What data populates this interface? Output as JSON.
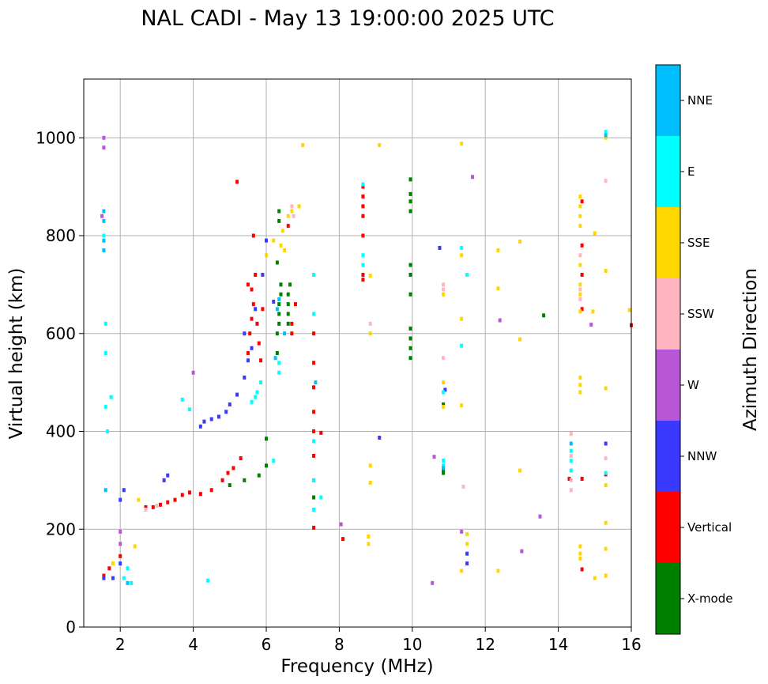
{
  "chart_data": {
    "type": "scatter",
    "title": "NAL CADI - May 13 19:00:00 2025 UTC",
    "xlabel": "Frequency (MHz)",
    "ylabel": "Virtual height (km)",
    "xlim": [
      1,
      16
    ],
    "ylim": [
      0,
      1120
    ],
    "xticks": [
      2,
      4,
      6,
      8,
      10,
      12,
      14,
      16
    ],
    "yticks": [
      0,
      200,
      400,
      600,
      800,
      1000
    ],
    "grid": true,
    "colorbar": {
      "title": "Azimuth Direction",
      "categories": [
        {
          "label": "X-mode",
          "color": "#008000"
        },
        {
          "label": "Vertical",
          "color": "#ff0000"
        },
        {
          "label": "NNW",
          "color": "#3a3aff"
        },
        {
          "label": "W",
          "color": "#b857d6"
        },
        {
          "label": "SSW",
          "color": "#ffb6c1"
        },
        {
          "label": "SSE",
          "color": "#ffd700"
        },
        {
          "label": "E",
          "color": "#00ffff"
        },
        {
          "label": "NNE",
          "color": "#00bfff"
        }
      ]
    },
    "series": [
      {
        "name": "X-mode",
        "points": [
          [
            6.0,
            385
          ],
          [
            6.3,
            560
          ],
          [
            6.3,
            600
          ],
          [
            6.35,
            620
          ],
          [
            6.35,
            640
          ],
          [
            6.35,
            660
          ],
          [
            6.4,
            680
          ],
          [
            6.4,
            700
          ],
          [
            6.6,
            620
          ],
          [
            6.6,
            640
          ],
          [
            6.6,
            660
          ],
          [
            6.6,
            680
          ],
          [
            6.65,
            700
          ],
          [
            6.35,
            850
          ],
          [
            6.35,
            830
          ],
          [
            6.3,
            745
          ],
          [
            6.0,
            330
          ],
          [
            5.8,
            310
          ],
          [
            7.3,
            265
          ],
          [
            9.95,
            915
          ],
          [
            9.95,
            885
          ],
          [
            9.95,
            870
          ],
          [
            9.95,
            850
          ],
          [
            9.95,
            740
          ],
          [
            9.95,
            720
          ],
          [
            9.95,
            680
          ],
          [
            9.95,
            610
          ],
          [
            9.95,
            590
          ],
          [
            9.95,
            570
          ],
          [
            9.95,
            550
          ],
          [
            10.85,
            455
          ],
          [
            10.85,
            315
          ],
          [
            10.85,
            320
          ],
          [
            13.6,
            637
          ],
          [
            5.0,
            290
          ],
          [
            5.4,
            300
          ]
        ]
      },
      {
        "name": "Vertical",
        "points": [
          [
            2.7,
            245
          ],
          [
            2.9,
            245
          ],
          [
            3.1,
            250
          ],
          [
            3.3,
            255
          ],
          [
            3.5,
            260
          ],
          [
            3.7,
            270
          ],
          [
            3.9,
            275
          ],
          [
            4.2,
            272
          ],
          [
            4.5,
            280
          ],
          [
            4.8,
            300
          ],
          [
            4.95,
            315
          ],
          [
            5.1,
            325
          ],
          [
            5.3,
            345
          ],
          [
            5.5,
            560
          ],
          [
            5.55,
            600
          ],
          [
            5.6,
            630
          ],
          [
            5.65,
            660
          ],
          [
            5.6,
            690
          ],
          [
            5.5,
            700
          ],
          [
            5.75,
            620
          ],
          [
            5.8,
            580
          ],
          [
            5.85,
            545
          ],
          [
            5.9,
            650
          ],
          [
            5.7,
            720
          ],
          [
            5.65,
            800
          ],
          [
            5.2,
            910
          ],
          [
            6.7,
            600
          ],
          [
            6.8,
            660
          ],
          [
            6.7,
            620
          ],
          [
            6.6,
            820
          ],
          [
            7.3,
            600
          ],
          [
            7.3,
            540
          ],
          [
            7.3,
            490
          ],
          [
            7.3,
            440
          ],
          [
            7.3,
            400
          ],
          [
            7.3,
            350
          ],
          [
            7.3,
            300
          ],
          [
            7.3,
            203
          ],
          [
            7.5,
            397
          ],
          [
            8.1,
            180
          ],
          [
            8.65,
            860
          ],
          [
            8.65,
            880
          ],
          [
            8.65,
            900
          ],
          [
            8.65,
            840
          ],
          [
            8.65,
            800
          ],
          [
            8.65,
            720
          ],
          [
            8.65,
            710
          ],
          [
            14.3,
            303
          ],
          [
            14.65,
            303
          ],
          [
            14.65,
            870
          ],
          [
            14.65,
            780
          ],
          [
            14.65,
            720
          ],
          [
            14.65,
            650
          ],
          [
            14.65,
            118
          ],
          [
            15.3,
            312
          ],
          [
            16,
            617
          ],
          [
            1.55,
            105
          ],
          [
            1.7,
            120
          ],
          [
            2.0,
            145
          ]
        ]
      },
      {
        "name": "NNW",
        "points": [
          [
            4.3,
            420
          ],
          [
            4.5,
            425
          ],
          [
            4.7,
            430
          ],
          [
            4.9,
            440
          ],
          [
            5.0,
            455
          ],
          [
            5.2,
            475
          ],
          [
            5.4,
            510
          ],
          [
            5.5,
            545
          ],
          [
            5.6,
            570
          ],
          [
            5.4,
            600
          ],
          [
            5.7,
            650
          ],
          [
            5.9,
            720
          ],
          [
            6.0,
            790
          ],
          [
            3.2,
            300
          ],
          [
            3.3,
            310
          ],
          [
            4.2,
            410
          ],
          [
            1.55,
            100
          ],
          [
            1.8,
            100
          ],
          [
            2.0,
            130
          ],
          [
            9.1,
            387
          ],
          [
            10.75,
            775
          ],
          [
            10.9,
            485
          ],
          [
            11.5,
            150
          ],
          [
            11.5,
            130
          ],
          [
            15.3,
            375
          ],
          [
            2.0,
            260
          ],
          [
            2.1,
            280
          ],
          [
            6.2,
            665
          ]
        ]
      },
      {
        "name": "W",
        "points": [
          [
            1.55,
            1000
          ],
          [
            1.55,
            980
          ],
          [
            8.05,
            210
          ],
          [
            10.55,
            90
          ],
          [
            10.6,
            348
          ],
          [
            11.35,
            195
          ],
          [
            11.65,
            920
          ],
          [
            12.4,
            627
          ],
          [
            13.0,
            155
          ],
          [
            13.5,
            226
          ],
          [
            14.9,
            618
          ],
          [
            2.0,
            170
          ],
          [
            2.0,
            195
          ],
          [
            1.5,
            840
          ],
          [
            4.0,
            520
          ]
        ]
      },
      {
        "name": "SSW",
        "points": [
          [
            6.7,
            860
          ],
          [
            6.75,
            840
          ],
          [
            8.85,
            620
          ],
          [
            10.85,
            550
          ],
          [
            10.85,
            700
          ],
          [
            10.85,
            690
          ],
          [
            11.4,
            287
          ],
          [
            14.35,
            395
          ],
          [
            14.35,
            350
          ],
          [
            14.35,
            300
          ],
          [
            14.35,
            280
          ],
          [
            14.6,
            760
          ],
          [
            14.6,
            690
          ],
          [
            14.6,
            670
          ],
          [
            15.3,
            345
          ],
          [
            15.3,
            912
          ],
          [
            2.7,
            240
          ],
          [
            3.0,
            248
          ]
        ]
      },
      {
        "name": "SSE",
        "points": [
          [
            6.2,
            790
          ],
          [
            6.4,
            780
          ],
          [
            6.45,
            810
          ],
          [
            6.6,
            840
          ],
          [
            6.7,
            850
          ],
          [
            6.5,
            770
          ],
          [
            6.0,
            760
          ],
          [
            6.9,
            860
          ],
          [
            7.0,
            985
          ],
          [
            8.85,
            718
          ],
          [
            8.85,
            600
          ],
          [
            8.85,
            330
          ],
          [
            8.85,
            295
          ],
          [
            8.8,
            185
          ],
          [
            8.8,
            170
          ],
          [
            9.1,
            985
          ],
          [
            10.85,
            680
          ],
          [
            10.85,
            500
          ],
          [
            10.85,
            450
          ],
          [
            11.35,
            988
          ],
          [
            11.35,
            760
          ],
          [
            11.35,
            630
          ],
          [
            11.35,
            453
          ],
          [
            11.35,
            115
          ],
          [
            11.5,
            190
          ],
          [
            11.5,
            170
          ],
          [
            12.35,
            770
          ],
          [
            12.35,
            692
          ],
          [
            12.35,
            115
          ],
          [
            12.95,
            788
          ],
          [
            12.95,
            588
          ],
          [
            12.95,
            320
          ],
          [
            14.6,
            880
          ],
          [
            14.6,
            860
          ],
          [
            14.6,
            840
          ],
          [
            14.6,
            820
          ],
          [
            14.6,
            740
          ],
          [
            14.6,
            700
          ],
          [
            14.6,
            680
          ],
          [
            14.6,
            645
          ],
          [
            14.6,
            510
          ],
          [
            14.6,
            495
          ],
          [
            14.6,
            480
          ],
          [
            14.6,
            165
          ],
          [
            14.6,
            150
          ],
          [
            14.6,
            140
          ],
          [
            14.95,
            645
          ],
          [
            15.0,
            805
          ],
          [
            15.0,
            100
          ],
          [
            15.3,
            1000
          ],
          [
            15.3,
            728
          ],
          [
            15.3,
            488
          ],
          [
            15.3,
            290
          ],
          [
            15.3,
            213
          ],
          [
            15.3,
            160
          ],
          [
            15.3,
            105
          ],
          [
            15.95,
            648
          ],
          [
            2.5,
            260
          ],
          [
            2.4,
            165
          ],
          [
            1.8,
            130
          ]
        ]
      },
      {
        "name": "E",
        "points": [
          [
            5.6,
            460
          ],
          [
            5.7,
            470
          ],
          [
            5.75,
            480
          ],
          [
            5.85,
            500
          ],
          [
            6.2,
            340
          ],
          [
            6.35,
            520
          ],
          [
            6.35,
            540
          ],
          [
            4.4,
            95
          ],
          [
            1.55,
            800
          ],
          [
            1.6,
            620
          ],
          [
            1.6,
            560
          ],
          [
            1.6,
            450
          ],
          [
            1.75,
            470
          ],
          [
            1.65,
            400
          ],
          [
            3.7,
            465
          ],
          [
            3.9,
            445
          ],
          [
            7.3,
            720
          ],
          [
            7.3,
            640
          ],
          [
            7.3,
            380
          ],
          [
            7.3,
            300
          ],
          [
            7.3,
            240
          ],
          [
            7.5,
            265
          ],
          [
            8.65,
            905
          ],
          [
            8.65,
            760
          ],
          [
            8.65,
            740
          ],
          [
            10.85,
            480
          ],
          [
            10.85,
            340
          ],
          [
            10.85,
            330
          ],
          [
            11.35,
            775
          ],
          [
            11.35,
            575
          ],
          [
            11.5,
            720
          ],
          [
            14.35,
            360
          ],
          [
            14.35,
            340
          ],
          [
            14.35,
            320
          ],
          [
            15.3,
            315
          ],
          [
            15.3,
            1012
          ],
          [
            2.1,
            100
          ],
          [
            2.3,
            90
          ],
          [
            2.2,
            120
          ]
        ]
      },
      {
        "name": "NNE",
        "points": [
          [
            1.55,
            850
          ],
          [
            1.55,
            830
          ],
          [
            1.55,
            790
          ],
          [
            1.55,
            770
          ],
          [
            6.25,
            550
          ],
          [
            6.3,
            650
          ],
          [
            6.35,
            670
          ],
          [
            6.5,
            600
          ],
          [
            7.35,
            500
          ],
          [
            10.85,
            325
          ],
          [
            14.35,
            375
          ],
          [
            15.3,
            1005
          ],
          [
            2.2,
            90
          ],
          [
            1.6,
            280
          ]
        ]
      }
    ]
  }
}
